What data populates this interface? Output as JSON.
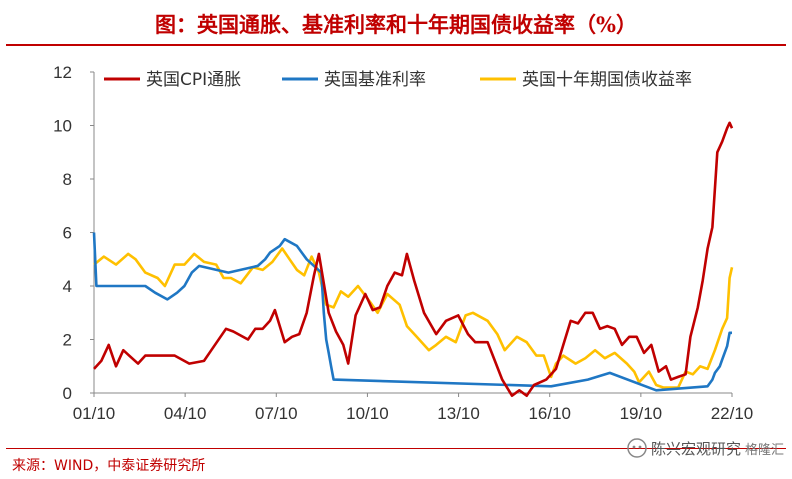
{
  "title": "图：英国通胀、基准利率和十年期国债收益率（%）",
  "source": "来源：WIND，中泰证券研究所",
  "watermark": {
    "text": "陈兴宏观研究",
    "logo_text": "格隆汇",
    "icon": "wechat-official-account-icon"
  },
  "colors": {
    "title": "#c00000",
    "cpi": "#c00000",
    "bank_rate": "#1f77c4",
    "gilt_10y": "#ffc000"
  },
  "chart_data": {
    "type": "line",
    "x_ticks": [
      "01/10",
      "04/10",
      "07/10",
      "10/10",
      "13/10",
      "16/10",
      "19/10",
      "22/10"
    ],
    "x_range": [
      "2001-01",
      "2022-10"
    ],
    "ylim": [
      0,
      12
    ],
    "y_ticks": [
      "0",
      "2",
      "4",
      "6",
      "8",
      "10",
      "12"
    ],
    "grid": false,
    "legend": "top-left",
    "series": [
      {
        "name": "英国CPI通胀",
        "color": "#c00000",
        "points": [
          [
            "2001-01",
            0.9
          ],
          [
            "2001-04",
            1.2
          ],
          [
            "2001-07",
            1.8
          ],
          [
            "2001-10",
            1.0
          ],
          [
            "2002-01",
            1.6
          ],
          [
            "2002-07",
            1.1
          ],
          [
            "2002-10",
            1.4
          ],
          [
            "2003-04",
            1.4
          ],
          [
            "2003-10",
            1.4
          ],
          [
            "2004-04",
            1.1
          ],
          [
            "2004-10",
            1.2
          ],
          [
            "2005-01",
            1.6
          ],
          [
            "2005-07",
            2.4
          ],
          [
            "2005-10",
            2.3
          ],
          [
            "2006-04",
            2.0
          ],
          [
            "2006-07",
            2.4
          ],
          [
            "2006-10",
            2.4
          ],
          [
            "2007-01",
            2.7
          ],
          [
            "2007-03",
            3.1
          ],
          [
            "2007-07",
            1.9
          ],
          [
            "2007-10",
            2.1
          ],
          [
            "2008-01",
            2.2
          ],
          [
            "2008-04",
            3.0
          ],
          [
            "2008-07",
            4.4
          ],
          [
            "2008-09",
            5.2
          ],
          [
            "2008-11",
            4.1
          ],
          [
            "2009-01",
            3.0
          ],
          [
            "2009-04",
            2.3
          ],
          [
            "2009-07",
            1.8
          ],
          [
            "2009-09",
            1.1
          ],
          [
            "2009-12",
            2.9
          ],
          [
            "2010-04",
            3.7
          ],
          [
            "2010-07",
            3.1
          ],
          [
            "2010-10",
            3.2
          ],
          [
            "2011-01",
            4.0
          ],
          [
            "2011-04",
            4.5
          ],
          [
            "2011-07",
            4.4
          ],
          [
            "2011-09",
            5.2
          ],
          [
            "2011-12",
            4.2
          ],
          [
            "2012-04",
            3.0
          ],
          [
            "2012-09",
            2.2
          ],
          [
            "2013-01",
            2.7
          ],
          [
            "2013-06",
            2.9
          ],
          [
            "2013-10",
            2.2
          ],
          [
            "2014-01",
            1.9
          ],
          [
            "2014-06",
            1.9
          ],
          [
            "2014-09",
            1.2
          ],
          [
            "2014-12",
            0.5
          ],
          [
            "2015-04",
            -0.1
          ],
          [
            "2015-07",
            0.1
          ],
          [
            "2015-10",
            -0.1
          ],
          [
            "2016-01",
            0.3
          ],
          [
            "2016-06",
            0.5
          ],
          [
            "2016-10",
            0.9
          ],
          [
            "2017-01",
            1.8
          ],
          [
            "2017-04",
            2.7
          ],
          [
            "2017-07",
            2.6
          ],
          [
            "2017-10",
            3.0
          ],
          [
            "2018-01",
            3.0
          ],
          [
            "2018-04",
            2.4
          ],
          [
            "2018-07",
            2.5
          ],
          [
            "2018-10",
            2.4
          ],
          [
            "2019-01",
            1.8
          ],
          [
            "2019-04",
            2.1
          ],
          [
            "2019-07",
            2.1
          ],
          [
            "2019-10",
            1.5
          ],
          [
            "2020-01",
            1.8
          ],
          [
            "2020-04",
            0.8
          ],
          [
            "2020-07",
            1.0
          ],
          [
            "2020-09",
            0.5
          ],
          [
            "2020-12",
            0.6
          ],
          [
            "2021-03",
            0.7
          ],
          [
            "2021-05",
            2.1
          ],
          [
            "2021-08",
            3.2
          ],
          [
            "2021-10",
            4.2
          ],
          [
            "2021-12",
            5.4
          ],
          [
            "2022-02",
            6.2
          ],
          [
            "2022-04",
            9.0
          ],
          [
            "2022-06",
            9.4
          ],
          [
            "2022-08",
            9.9
          ],
          [
            "2022-09",
            10.1
          ],
          [
            "2022-10",
            9.9
          ]
        ]
      },
      {
        "name": "英国基准利率",
        "color": "#1f77c4",
        "points": [
          [
            "2001-01",
            6.0
          ],
          [
            "2001-02",
            4.0
          ],
          [
            "2002-10",
            4.0
          ],
          [
            "2003-02",
            3.75
          ],
          [
            "2003-07",
            3.5
          ],
          [
            "2003-11",
            3.75
          ],
          [
            "2004-02",
            4.0
          ],
          [
            "2004-05",
            4.5
          ],
          [
            "2004-08",
            4.75
          ],
          [
            "2005-08",
            4.5
          ],
          [
            "2006-08",
            4.75
          ],
          [
            "2006-11",
            5.0
          ],
          [
            "2007-01",
            5.25
          ],
          [
            "2007-05",
            5.5
          ],
          [
            "2007-07",
            5.75
          ],
          [
            "2007-12",
            5.5
          ],
          [
            "2008-02",
            5.25
          ],
          [
            "2008-04",
            5.0
          ],
          [
            "2008-10",
            4.5
          ],
          [
            "2008-11",
            3.0
          ],
          [
            "2008-12",
            2.0
          ],
          [
            "2009-01",
            1.5
          ],
          [
            "2009-02",
            1.0
          ],
          [
            "2009-03",
            0.5
          ],
          [
            "2016-08",
            0.25
          ],
          [
            "2017-11",
            0.5
          ],
          [
            "2018-08",
            0.75
          ],
          [
            "2020-03",
            0.1
          ],
          [
            "2021-12",
            0.25
          ],
          [
            "2022-02",
            0.5
          ],
          [
            "2022-03",
            0.75
          ],
          [
            "2022-05",
            1.0
          ],
          [
            "2022-06",
            1.25
          ],
          [
            "2022-08",
            1.75
          ],
          [
            "2022-09",
            2.25
          ],
          [
            "2022-10",
            2.25
          ]
        ]
      },
      {
        "name": "英国十年期国债收益率",
        "color": "#ffc000",
        "points": [
          [
            "2001-01",
            4.8
          ],
          [
            "2001-05",
            5.1
          ],
          [
            "2001-10",
            4.8
          ],
          [
            "2002-03",
            5.2
          ],
          [
            "2002-06",
            5.0
          ],
          [
            "2002-10",
            4.5
          ],
          [
            "2003-03",
            4.3
          ],
          [
            "2003-06",
            4.0
          ],
          [
            "2003-10",
            4.8
          ],
          [
            "2004-02",
            4.8
          ],
          [
            "2004-06",
            5.2
          ],
          [
            "2004-10",
            4.9
          ],
          [
            "2005-03",
            4.8
          ],
          [
            "2005-06",
            4.3
          ],
          [
            "2005-09",
            4.3
          ],
          [
            "2006-01",
            4.1
          ],
          [
            "2006-06",
            4.7
          ],
          [
            "2006-10",
            4.6
          ],
          [
            "2007-02",
            4.9
          ],
          [
            "2007-06",
            5.4
          ],
          [
            "2007-09",
            5.0
          ],
          [
            "2007-12",
            4.6
          ],
          [
            "2008-03",
            4.4
          ],
          [
            "2008-06",
            5.1
          ],
          [
            "2008-09",
            4.5
          ],
          [
            "2008-12",
            3.3
          ],
          [
            "2009-03",
            3.2
          ],
          [
            "2009-06",
            3.8
          ],
          [
            "2009-09",
            3.6
          ],
          [
            "2010-01",
            4.0
          ],
          [
            "2010-06",
            3.4
          ],
          [
            "2010-09",
            3.0
          ],
          [
            "2011-01",
            3.7
          ],
          [
            "2011-06",
            3.3
          ],
          [
            "2011-09",
            2.5
          ],
          [
            "2012-01",
            2.1
          ],
          [
            "2012-06",
            1.6
          ],
          [
            "2012-09",
            1.8
          ],
          [
            "2013-01",
            2.1
          ],
          [
            "2013-05",
            1.9
          ],
          [
            "2013-09",
            2.9
          ],
          [
            "2013-12",
            3.0
          ],
          [
            "2014-06",
            2.7
          ],
          [
            "2014-10",
            2.2
          ],
          [
            "2015-01",
            1.6
          ],
          [
            "2015-06",
            2.1
          ],
          [
            "2015-10",
            1.9
          ],
          [
            "2016-02",
            1.4
          ],
          [
            "2016-05",
            1.4
          ],
          [
            "2016-08",
            0.6
          ],
          [
            "2016-10",
            1.1
          ],
          [
            "2017-01",
            1.4
          ],
          [
            "2017-06",
            1.1
          ],
          [
            "2017-10",
            1.3
          ],
          [
            "2018-02",
            1.6
          ],
          [
            "2018-06",
            1.3
          ],
          [
            "2018-10",
            1.5
          ],
          [
            "2019-03",
            1.1
          ],
          [
            "2019-06",
            0.8
          ],
          [
            "2019-08",
            0.4
          ],
          [
            "2019-12",
            0.8
          ],
          [
            "2020-03",
            0.3
          ],
          [
            "2020-06",
            0.2
          ],
          [
            "2020-09",
            0.2
          ],
          [
            "2020-12",
            0.2
          ],
          [
            "2021-03",
            0.8
          ],
          [
            "2021-06",
            0.7
          ],
          [
            "2021-09",
            1.0
          ],
          [
            "2021-12",
            0.9
          ],
          [
            "2022-03",
            1.6
          ],
          [
            "2022-06",
            2.4
          ],
          [
            "2022-08",
            2.8
          ],
          [
            "2022-09",
            4.3
          ],
          [
            "2022-10",
            4.7
          ]
        ]
      }
    ]
  }
}
